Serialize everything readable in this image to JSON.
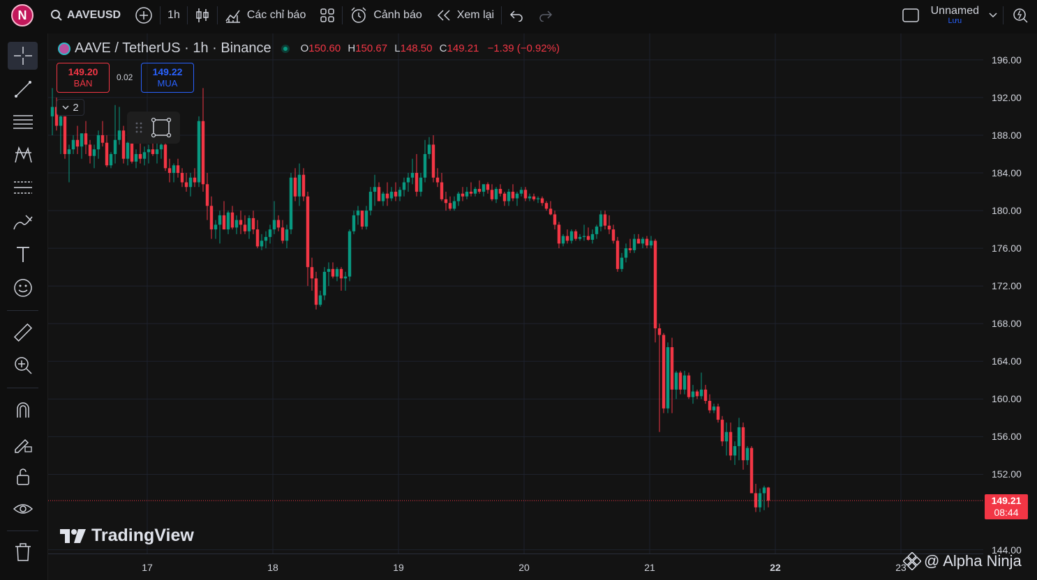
{
  "topbar": {
    "avatar": "N",
    "symbol": "AAVEUSD",
    "interval": "1h",
    "indicators_label": "Các chỉ báo",
    "alerts_label": "Cảnh báo",
    "replay_label": "Xem lại",
    "layout_name": "Unnamed",
    "layout_save": "Lưu"
  },
  "legend": {
    "title": "AAVE / TetherUS · 1h · Binance",
    "o_label": "O",
    "o": "150.60",
    "h_label": "H",
    "h": "150.67",
    "l_label": "L",
    "l": "148.50",
    "c_label": "C",
    "c": "149.21",
    "change": "−1.39 (−0.92%)"
  },
  "trade": {
    "sell_price": "149.20",
    "sell_label": "BÁN",
    "spread": "0.02",
    "buy_price": "149.22",
    "buy_label": "MUA"
  },
  "collapse_count": "2",
  "brand": "TradingView",
  "watermark": "@ Alpha Ninja",
  "price_tag": {
    "price": "149.21",
    "countdown": "08:44"
  },
  "colors": {
    "up": "#089981",
    "down": "#f23645",
    "background": "#131313",
    "grid": "#1e222d"
  },
  "chart_data": {
    "type": "candlestick",
    "price_ticks": [
      "196.00",
      "192.00",
      "188.00",
      "184.00",
      "180.00",
      "176.00",
      "172.00",
      "168.00",
      "164.00",
      "160.00",
      "156.00",
      "152.00",
      "144.00"
    ],
    "time_ticks": [
      {
        "label": "17",
        "bold": false
      },
      {
        "label": "18",
        "bold": false
      },
      {
        "label": "19",
        "bold": false
      },
      {
        "label": "20",
        "bold": false
      },
      {
        "label": "21",
        "bold": false
      },
      {
        "label": "22",
        "bold": true
      },
      {
        "label": "23",
        "bold": false
      }
    ],
    "ylim": [
      143.6,
      198.8
    ],
    "last_price": 149.21,
    "candles": [
      [
        190.0,
        193.0,
        188.0,
        191.0
      ],
      [
        191.0,
        192.0,
        188.5,
        189.0
      ],
      [
        189.0,
        190.5,
        186.0,
        190.0
      ],
      [
        190.0,
        190.0,
        185.5,
        186.0
      ],
      [
        186.0,
        187.0,
        183.0,
        186.5
      ],
      [
        186.5,
        188.0,
        186.0,
        187.5
      ],
      [
        187.5,
        189.0,
        186.0,
        186.8
      ],
      [
        186.8,
        188.0,
        185.5,
        188.2
      ],
      [
        188.2,
        189.5,
        186.0,
        187.0
      ],
      [
        187.0,
        187.5,
        185.0,
        185.8
      ],
      [
        185.8,
        187.0,
        184.5,
        186.5
      ],
      [
        186.5,
        188.5,
        185.5,
        188.0
      ],
      [
        188.0,
        189.5,
        186.8,
        187.2
      ],
      [
        187.2,
        188.0,
        184.6,
        184.8
      ],
      [
        184.8,
        186.2,
        184.5,
        186.0
      ],
      [
        186.0,
        191.2,
        185.0,
        187.5
      ],
      [
        187.5,
        191.0,
        187.0,
        188.5
      ],
      [
        188.5,
        189.0,
        185.0,
        185.5
      ],
      [
        185.5,
        187.8,
        184.8,
        187.2
      ],
      [
        187.2,
        187.8,
        185.0,
        185.2
      ],
      [
        185.2,
        186.5,
        184.5,
        186.0
      ],
      [
        186.0,
        187.5,
        185.0,
        185.5
      ],
      [
        185.5,
        186.8,
        184.8,
        186.2
      ],
      [
        186.2,
        187.0,
        185.0,
        186.5
      ],
      [
        186.5,
        189.0,
        185.8,
        186.0
      ],
      [
        186.0,
        188.0,
        185.0,
        186.5
      ],
      [
        186.5,
        187.3,
        185.5,
        187.0
      ],
      [
        187.0,
        187.5,
        184.2,
        184.5
      ],
      [
        184.5,
        185.5,
        183.0,
        184.0
      ],
      [
        184.0,
        185.0,
        183.0,
        184.8
      ],
      [
        184.8,
        185.5,
        183.5,
        184.0
      ],
      [
        184.0,
        184.5,
        182.5,
        183.0
      ],
      [
        183.0,
        184.0,
        182.0,
        182.5
      ],
      [
        182.5,
        184.0,
        181.5,
        183.5
      ],
      [
        183.5,
        184.5,
        182.5,
        183.0
      ],
      [
        183.0,
        190.0,
        182.5,
        189.5
      ],
      [
        189.5,
        193.0,
        182.0,
        182.8
      ],
      [
        182.8,
        184.0,
        179.0,
        180.5
      ],
      [
        180.5,
        181.5,
        177.0,
        178.0
      ],
      [
        178.0,
        179.0,
        177.0,
        178.5
      ],
      [
        178.5,
        180.0,
        176.5,
        179.5
      ],
      [
        179.5,
        181.0,
        178.0,
        178.0
      ],
      [
        178.0,
        180.0,
        177.5,
        179.8
      ],
      [
        179.8,
        180.5,
        178.0,
        178.2
      ],
      [
        178.2,
        179.5,
        177.5,
        179.0
      ],
      [
        179.0,
        180.0,
        177.5,
        178.5
      ],
      [
        178.5,
        179.5,
        177.5,
        177.8
      ],
      [
        177.8,
        179.5,
        177.0,
        179.2
      ],
      [
        179.2,
        180.0,
        177.5,
        178.0
      ],
      [
        178.0,
        179.0,
        176.0,
        176.2
      ],
      [
        176.2,
        177.5,
        175.8,
        176.8
      ],
      [
        176.8,
        177.8,
        176.0,
        177.2
      ],
      [
        177.2,
        178.5,
        176.5,
        178.0
      ],
      [
        178.0,
        181.0,
        177.5,
        179.0
      ],
      [
        179.0,
        179.5,
        177.8,
        178.2
      ],
      [
        178.2,
        179.0,
        176.5,
        176.8
      ],
      [
        176.8,
        178.5,
        176.0,
        178.0
      ],
      [
        178.0,
        184.0,
        177.5,
        183.5
      ],
      [
        183.5,
        184.5,
        181.0,
        181.5
      ],
      [
        181.5,
        185.0,
        180.5,
        183.8
      ],
      [
        183.8,
        184.5,
        181.0,
        181.5
      ],
      [
        181.5,
        182.0,
        172.0,
        174.0
      ],
      [
        174.0,
        175.0,
        171.5,
        172.8
      ],
      [
        172.8,
        173.5,
        169.5,
        170.0
      ],
      [
        170.0,
        171.5,
        169.8,
        171.0
      ],
      [
        171.0,
        174.0,
        170.5,
        173.5
      ],
      [
        173.5,
        174.5,
        172.0,
        173.8
      ],
      [
        173.8,
        174.5,
        172.8,
        173.0
      ],
      [
        173.0,
        174.0,
        172.5,
        173.8
      ],
      [
        173.8,
        174.0,
        171.5,
        172.8
      ],
      [
        172.8,
        173.5,
        171.5,
        173.0
      ],
      [
        173.0,
        178.0,
        172.5,
        177.8
      ],
      [
        177.8,
        180.0,
        177.5,
        179.5
      ],
      [
        179.5,
        180.5,
        178.5,
        180.0
      ],
      [
        180.0,
        180.0,
        178.0,
        178.3
      ],
      [
        178.3,
        180.5,
        178.0,
        180.0
      ],
      [
        180.0,
        182.5,
        179.5,
        182.0
      ],
      [
        182.0,
        183.8,
        180.5,
        182.5
      ],
      [
        182.5,
        183.0,
        181.0,
        181.0
      ],
      [
        181.0,
        182.0,
        180.5,
        181.8
      ],
      [
        181.8,
        183.0,
        180.5,
        181.3
      ],
      [
        181.3,
        182.5,
        181.0,
        182.0
      ],
      [
        182.0,
        183.0,
        181.0,
        181.5
      ],
      [
        181.5,
        182.5,
        181.0,
        182.2
      ],
      [
        182.2,
        183.5,
        181.5,
        183.0
      ],
      [
        183.0,
        184.0,
        182.0,
        183.5
      ],
      [
        183.5,
        185.5,
        182.8,
        184.0
      ],
      [
        184.0,
        186.0,
        181.5,
        182.0
      ],
      [
        182.0,
        184.0,
        181.5,
        183.5
      ],
      [
        183.5,
        187.5,
        183.0,
        186.0
      ],
      [
        186.0,
        187.8,
        185.5,
        187.0
      ],
      [
        187.0,
        188.0,
        183.0,
        183.5
      ],
      [
        183.5,
        184.5,
        182.5,
        183.0
      ],
      [
        183.0,
        184.0,
        181.0,
        181.2
      ],
      [
        181.2,
        182.0,
        180.0,
        180.8
      ],
      [
        180.8,
        181.5,
        180.0,
        180.2
      ],
      [
        180.2,
        181.5,
        180.0,
        181.0
      ],
      [
        181.0,
        182.0,
        180.5,
        181.8
      ],
      [
        181.8,
        182.5,
        181.0,
        181.5
      ],
      [
        181.5,
        182.5,
        181.2,
        182.0
      ],
      [
        182.0,
        183.0,
        181.5,
        181.8
      ],
      [
        181.8,
        182.5,
        181.5,
        182.3
      ],
      [
        182.3,
        183.2,
        181.8,
        182.0
      ],
      [
        182.0,
        182.5,
        181.5,
        182.8
      ],
      [
        182.8,
        183.0,
        181.8,
        182.2
      ],
      [
        182.2,
        182.8,
        181.0,
        181.2
      ],
      [
        181.2,
        182.5,
        180.8,
        182.3
      ],
      [
        182.3,
        182.8,
        181.5,
        181.8
      ],
      [
        181.8,
        182.0,
        180.5,
        181.0
      ],
      [
        181.0,
        182.3,
        180.5,
        182.0
      ],
      [
        182.0,
        182.8,
        181.0,
        181.3
      ],
      [
        181.3,
        182.0,
        180.5,
        181.8
      ],
      [
        181.8,
        182.5,
        181.5,
        182.2
      ],
      [
        182.2,
        182.5,
        181.0,
        181.3
      ],
      [
        181.3,
        181.8,
        181.0,
        181.5
      ],
      [
        181.5,
        181.8,
        181.0,
        181.2
      ],
      [
        181.2,
        181.5,
        180.8,
        181.3
      ],
      [
        181.3,
        181.5,
        180.5,
        180.8
      ],
      [
        180.8,
        181.0,
        180.0,
        180.2
      ],
      [
        180.2,
        181.0,
        179.5,
        179.6
      ],
      [
        179.6,
        180.0,
        178.0,
        178.5
      ],
      [
        178.5,
        178.8,
        176.0,
        176.5
      ],
      [
        176.5,
        177.5,
        176.2,
        177.3
      ],
      [
        177.3,
        178.0,
        176.5,
        176.8
      ],
      [
        176.8,
        178.0,
        176.5,
        177.8
      ],
      [
        177.8,
        178.0,
        176.8,
        177.0
      ],
      [
        177.0,
        177.5,
        176.8,
        177.2
      ],
      [
        177.2,
        178.5,
        176.8,
        177.3
      ],
      [
        177.3,
        178.2,
        176.8,
        176.9
      ],
      [
        176.9,
        178.0,
        176.5,
        177.5
      ],
      [
        177.5,
        178.5,
        177.0,
        178.3
      ],
      [
        178.3,
        180.0,
        177.8,
        179.6
      ],
      [
        179.6,
        180.0,
        178.0,
        178.4
      ],
      [
        178.4,
        179.5,
        177.5,
        178.0
      ],
      [
        178.0,
        178.5,
        176.5,
        176.8
      ],
      [
        176.8,
        177.2,
        173.5,
        173.8
      ],
      [
        173.8,
        175.5,
        173.5,
        175.0
      ],
      [
        175.0,
        176.5,
        174.5,
        176.0
      ],
      [
        176.0,
        177.0,
        175.5,
        175.8
      ],
      [
        175.8,
        177.5,
        175.5,
        177.0
      ],
      [
        177.0,
        177.5,
        176.5,
        176.5
      ],
      [
        176.5,
        177.2,
        176.0,
        177.0
      ],
      [
        177.0,
        177.3,
        176.0,
        176.3
      ],
      [
        176.3,
        177.3,
        176.0,
        176.8
      ],
      [
        176.8,
        177.0,
        166.0,
        167.5
      ],
      [
        167.5,
        168.0,
        156.5,
        166.8
      ],
      [
        166.8,
        167.0,
        158.5,
        159.0
      ],
      [
        159.0,
        166.0,
        158.5,
        165.5
      ],
      [
        165.5,
        166.5,
        158.5,
        161.0
      ],
      [
        161.0,
        163.0,
        160.0,
        162.8
      ],
      [
        162.8,
        163.0,
        160.5,
        161.0
      ],
      [
        161.0,
        163.0,
        160.5,
        162.5
      ],
      [
        162.5,
        162.8,
        160.0,
        160.2
      ],
      [
        160.2,
        161.5,
        159.5,
        160.8
      ],
      [
        160.8,
        161.0,
        160.0,
        160.3
      ],
      [
        160.3,
        162.8,
        160.0,
        161.0
      ],
      [
        161.0,
        161.5,
        159.5,
        159.8
      ],
      [
        159.8,
        160.5,
        158.5,
        158.8
      ],
      [
        158.8,
        159.5,
        158.5,
        159.2
      ],
      [
        159.2,
        159.5,
        157.5,
        157.8
      ],
      [
        157.8,
        158.2,
        155.0,
        155.5
      ],
      [
        155.5,
        157.5,
        154.0,
        156.5
      ],
      [
        156.5,
        157.5,
        153.5,
        154.0
      ],
      [
        154.0,
        155.5,
        153.0,
        155.0
      ],
      [
        155.0,
        158.0,
        153.5,
        157.0
      ],
      [
        157.0,
        157.5,
        152.5,
        153.5
      ],
      [
        153.5,
        155.0,
        153.0,
        154.8
      ],
      [
        154.8,
        155.0,
        150.0,
        150.0
      ],
      [
        150.0,
        151.0,
        148.0,
        148.5
      ],
      [
        148.5,
        150.5,
        148.0,
        150.0
      ],
      [
        150.0,
        150.8,
        148.2,
        150.6
      ],
      [
        150.6,
        150.67,
        148.5,
        149.21
      ]
    ]
  }
}
